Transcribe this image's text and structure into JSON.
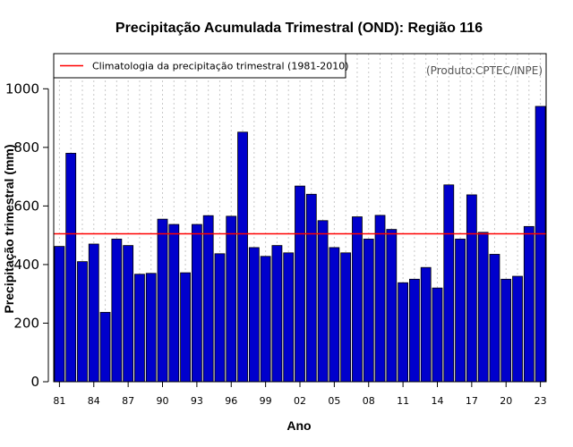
{
  "chart_data": {
    "type": "bar",
    "title": "Precipitação Acumulada Trimestral (OND): Região 116",
    "xlabel": "Ano",
    "ylabel": "Precipitação trimestral (mm)",
    "ylim": [
      0,
      1120
    ],
    "yticks": [
      0,
      200,
      400,
      600,
      800,
      1000
    ],
    "ytick_labels": [
      "0",
      "200",
      "400",
      "600",
      "800",
      "1000"
    ],
    "x": [
      1981,
      1982,
      1983,
      1984,
      1985,
      1986,
      1987,
      1988,
      1989,
      1990,
      1991,
      1992,
      1993,
      1994,
      1995,
      1996,
      1997,
      1998,
      1999,
      2000,
      2001,
      2002,
      2003,
      2004,
      2005,
      2006,
      2007,
      2008,
      2009,
      2010,
      2011,
      2012,
      2013,
      2014,
      2015,
      2016,
      2017,
      2018,
      2019,
      2020,
      2021,
      2022,
      2023
    ],
    "x_tick_labels": [
      "81",
      "84",
      "87",
      "90",
      "93",
      "96",
      "99",
      "02",
      "05",
      "08",
      "11",
      "14",
      "17",
      "20",
      "23"
    ],
    "values": [
      462,
      780,
      410,
      470,
      237,
      487,
      465,
      367,
      370,
      555,
      537,
      372,
      537,
      567,
      437,
      565,
      852,
      458,
      428,
      465,
      440,
      668,
      640,
      550,
      458,
      440,
      563,
      487,
      568,
      520,
      338,
      350,
      390,
      320,
      672,
      487,
      638,
      510,
      435,
      350,
      360,
      530,
      940
    ],
    "bar_color": "#0000cc",
    "climatology": {
      "label": "Climatologia da precipitação trimestral (1981-2010)",
      "value": 505,
      "color": "#ff0000"
    },
    "annotation": "(Produto:CPTEC/INPE)",
    "grid": "vertical dotted at each year",
    "legend_position": "top-left"
  }
}
